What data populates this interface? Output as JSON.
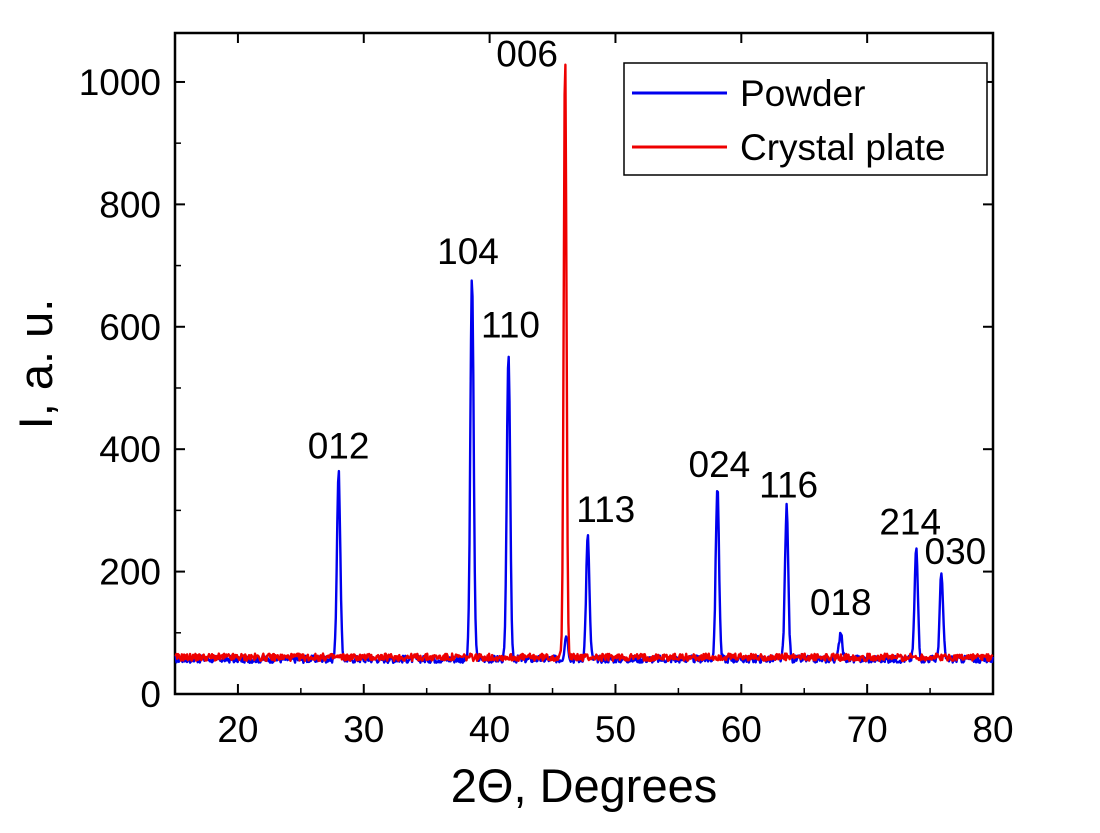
{
  "chart_data": {
    "type": "line",
    "xlabel": "2Θ, Degrees",
    "ylabel": "I, a. u.",
    "xlim": [
      15,
      80
    ],
    "ylim": [
      0,
      1080
    ],
    "xticks": [
      20,
      30,
      40,
      50,
      60,
      70,
      80
    ],
    "yticks": [
      0,
      200,
      400,
      600,
      800,
      1000
    ],
    "legend_position": "top-right",
    "baseline": 58,
    "series": [
      {
        "name": "Powder",
        "color": "#0000ee",
        "baseline": 57,
        "noise": 6,
        "peaks": [
          {
            "label": "012",
            "x": 28.0,
            "y": 362
          },
          {
            "label": "104",
            "x": 38.6,
            "y": 680
          },
          {
            "label": "110",
            "x": 41.5,
            "y": 560
          },
          {
            "label": "",
            "x": 46.1,
            "y": 97
          },
          {
            "label": "113",
            "x": 47.8,
            "y": 258
          },
          {
            "label": "024",
            "x": 58.1,
            "y": 338
          },
          {
            "label": "116",
            "x": 63.6,
            "y": 305
          },
          {
            "label": "018",
            "x": 67.9,
            "y": 103
          },
          {
            "label": "214",
            "x": 73.9,
            "y": 238
          },
          {
            "label": "030",
            "x": 75.9,
            "y": 196
          }
        ]
      },
      {
        "name": "Crystal plate",
        "color": "#ee0000",
        "baseline": 60,
        "noise": 6,
        "peaks": [
          {
            "label": "006",
            "x": 46.0,
            "y": 1042
          }
        ]
      }
    ]
  }
}
